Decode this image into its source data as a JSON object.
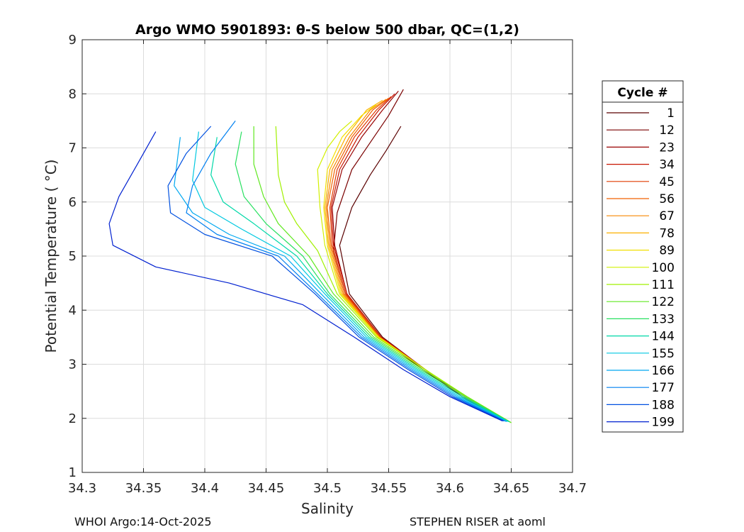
{
  "chart_data": {
    "type": "line",
    "title": "Argo WMO 5901893: θ-S below 500 dbar,  QC=(1,2)",
    "xlabel": "Salinity",
    "ylabel": "Potential Temperature ( °C)",
    "xlim": [
      34.3,
      34.7
    ],
    "ylim": [
      1,
      9
    ],
    "xticks": [
      34.3,
      34.35,
      34.4,
      34.45,
      34.5,
      34.55,
      34.6,
      34.65,
      34.7
    ],
    "xtick_labels": [
      "34.3",
      "34.35",
      "34.4",
      "34.45",
      "34.5",
      "34.55",
      "34.6",
      "34.65",
      "34.7"
    ],
    "yticks": [
      1,
      2,
      3,
      4,
      5,
      6,
      7,
      8,
      9
    ],
    "ytick_labels": [
      "1",
      "2",
      "3",
      "4",
      "5",
      "6",
      "7",
      "8",
      "9"
    ],
    "grid": true,
    "legend": {
      "title": "Cycle #",
      "position": "right-outside",
      "entries": [
        {
          "label": "1",
          "color": "#5a0000"
        },
        {
          "label": "12",
          "color": "#7a0000"
        },
        {
          "label": "23",
          "color": "#990000"
        },
        {
          "label": "34",
          "color": "#c81400"
        },
        {
          "label": "45",
          "color": "#e03a00"
        },
        {
          "label": "56",
          "color": "#f06000"
        },
        {
          "label": "67",
          "color": "#f88800"
        },
        {
          "label": "78",
          "color": "#fcb000"
        },
        {
          "label": "89",
          "color": "#f2e000"
        },
        {
          "label": "100",
          "color": "#d2f000"
        },
        {
          "label": "111",
          "color": "#a0f000"
        },
        {
          "label": "122",
          "color": "#60e820"
        },
        {
          "label": "133",
          "color": "#28e060"
        },
        {
          "label": "144",
          "color": "#00d8a8"
        },
        {
          "label": "155",
          "color": "#00c8e0"
        },
        {
          "label": "166",
          "color": "#00a8f0"
        },
        {
          "label": "177",
          "color": "#0080f0"
        },
        {
          "label": "188",
          "color": "#0050e0"
        },
        {
          "label": "199",
          "color": "#0020d0"
        }
      ]
    },
    "series": [
      {
        "name": "1",
        "color": "#5a0000",
        "x": [
          34.645,
          34.61,
          34.58,
          34.545,
          34.518,
          34.51,
          34.52,
          34.535,
          34.548,
          34.56
        ],
        "y": [
          1.95,
          2.4,
          2.9,
          3.5,
          4.3,
          5.2,
          5.9,
          6.5,
          6.95,
          7.4
        ]
      },
      {
        "name": "12",
        "color": "#7a0000",
        "x": [
          34.645,
          34.61,
          34.578,
          34.542,
          34.515,
          34.505,
          34.508,
          34.52,
          34.535,
          34.55,
          34.562
        ],
        "y": [
          1.95,
          2.4,
          2.9,
          3.5,
          4.3,
          5.1,
          5.8,
          6.6,
          7.1,
          7.6,
          8.08
        ]
      },
      {
        "name": "23",
        "color": "#990000",
        "x": [
          34.646,
          34.612,
          34.58,
          34.544,
          34.516,
          34.506,
          34.504,
          34.512,
          34.528,
          34.545,
          34.558
        ],
        "y": [
          1.95,
          2.4,
          2.9,
          3.5,
          4.3,
          5.2,
          5.9,
          6.6,
          7.2,
          7.7,
          8.05
        ]
      },
      {
        "name": "34",
        "color": "#c81400",
        "x": [
          34.646,
          34.612,
          34.58,
          34.544,
          34.516,
          34.505,
          34.503,
          34.51,
          34.525,
          34.542,
          34.555
        ],
        "y": [
          1.95,
          2.4,
          2.9,
          3.5,
          4.3,
          5.2,
          5.9,
          6.6,
          7.2,
          7.7,
          8.0
        ]
      },
      {
        "name": "45",
        "color": "#e03a00",
        "x": [
          34.646,
          34.612,
          34.58,
          34.543,
          34.515,
          34.504,
          34.502,
          34.508,
          34.522,
          34.54,
          34.552
        ],
        "y": [
          1.95,
          2.4,
          2.9,
          3.5,
          4.3,
          5.2,
          5.9,
          6.6,
          7.2,
          7.7,
          7.95
        ]
      },
      {
        "name": "56",
        "color": "#f06000",
        "x": [
          34.646,
          34.612,
          34.58,
          34.543,
          34.514,
          34.503,
          34.5,
          34.506,
          34.52,
          34.537,
          34.55
        ],
        "y": [
          1.95,
          2.4,
          2.9,
          3.5,
          4.3,
          5.2,
          5.9,
          6.6,
          7.2,
          7.7,
          7.92
        ]
      },
      {
        "name": "67",
        "color": "#f88800",
        "x": [
          34.647,
          34.612,
          34.58,
          34.542,
          34.513,
          34.502,
          34.499,
          34.504,
          34.518,
          34.535,
          34.548
        ],
        "y": [
          1.95,
          2.4,
          2.9,
          3.5,
          4.3,
          5.2,
          5.9,
          6.6,
          7.2,
          7.7,
          7.9
        ]
      },
      {
        "name": "78",
        "color": "#fcb000",
        "x": [
          34.648,
          34.613,
          34.58,
          34.542,
          34.512,
          34.501,
          34.498,
          34.502,
          34.515,
          34.532,
          34.545
        ],
        "y": [
          1.95,
          2.4,
          2.9,
          3.5,
          4.3,
          5.2,
          5.9,
          6.6,
          7.2,
          7.7,
          7.88
        ]
      },
      {
        "name": "89",
        "color": "#f2e000",
        "x": [
          34.648,
          34.613,
          34.58,
          34.542,
          34.511,
          34.5,
          34.497,
          34.5,
          34.512,
          34.528,
          34.54
        ],
        "y": [
          1.95,
          2.4,
          2.9,
          3.5,
          4.3,
          5.2,
          5.9,
          6.6,
          7.2,
          7.6,
          7.8
        ]
      },
      {
        "name": "100",
        "color": "#d2f000",
        "x": [
          34.65,
          34.614,
          34.58,
          34.541,
          34.51,
          34.498,
          34.494,
          34.492,
          34.5,
          34.51,
          34.52
        ],
        "y": [
          1.92,
          2.4,
          2.9,
          3.5,
          4.3,
          5.2,
          5.9,
          6.6,
          7.0,
          7.3,
          7.5
        ]
      },
      {
        "name": "111",
        "color": "#a0f000",
        "x": [
          34.65,
          34.614,
          34.58,
          34.54,
          34.508,
          34.492,
          34.475,
          34.465,
          34.46,
          34.458
        ],
        "y": [
          1.92,
          2.4,
          2.9,
          3.5,
          4.3,
          5.1,
          5.6,
          6.0,
          6.5,
          7.4
        ]
      },
      {
        "name": "122",
        "color": "#60e820",
        "x": [
          34.65,
          34.614,
          34.578,
          34.538,
          34.505,
          34.485,
          34.46,
          34.448,
          34.44,
          34.44
        ],
        "y": [
          1.92,
          2.4,
          2.9,
          3.5,
          4.3,
          5.0,
          5.6,
          6.1,
          6.7,
          7.4
        ]
      },
      {
        "name": "133",
        "color": "#28e060",
        "x": [
          34.649,
          34.612,
          34.576,
          34.536,
          34.502,
          34.48,
          34.45,
          34.432,
          34.425,
          34.43
        ],
        "y": [
          1.93,
          2.4,
          2.9,
          3.5,
          4.3,
          5.0,
          5.6,
          6.1,
          6.7,
          7.3
        ]
      },
      {
        "name": "144",
        "color": "#00d8a8",
        "x": [
          34.648,
          34.61,
          34.574,
          34.534,
          34.5,
          34.475,
          34.44,
          34.415,
          34.405,
          34.41
        ],
        "y": [
          1.94,
          2.4,
          2.9,
          3.5,
          4.3,
          5.0,
          5.6,
          6.0,
          6.5,
          7.2
        ]
      },
      {
        "name": "155",
        "color": "#00c8e0",
        "x": [
          34.647,
          34.608,
          34.572,
          34.532,
          34.498,
          34.47,
          34.43,
          34.4,
          34.39,
          34.395
        ],
        "y": [
          1.94,
          2.4,
          2.9,
          3.5,
          4.3,
          5.0,
          5.5,
          5.9,
          6.4,
          7.3
        ]
      },
      {
        "name": "166",
        "color": "#00a8f0",
        "x": [
          34.646,
          34.606,
          34.57,
          34.53,
          34.495,
          34.465,
          34.42,
          34.39,
          34.375,
          34.38
        ],
        "y": [
          1.94,
          2.4,
          2.9,
          3.5,
          4.3,
          5.0,
          5.4,
          5.8,
          6.3,
          7.2
        ]
      },
      {
        "name": "177",
        "color": "#0080f0",
        "x": [
          34.645,
          34.604,
          34.568,
          34.528,
          34.492,
          34.46,
          34.41,
          34.385,
          34.39,
          34.405,
          34.425
        ],
        "y": [
          1.95,
          2.4,
          2.9,
          3.5,
          4.3,
          5.0,
          5.4,
          5.8,
          6.3,
          6.9,
          7.5
        ]
      },
      {
        "name": "188",
        "color": "#0050e0",
        "x": [
          34.644,
          34.602,
          34.566,
          34.526,
          34.49,
          34.455,
          34.4,
          34.372,
          34.37,
          34.385,
          34.405
        ],
        "y": [
          1.95,
          2.4,
          2.9,
          3.5,
          4.3,
          5.0,
          5.4,
          5.8,
          6.3,
          6.9,
          7.4
        ]
      },
      {
        "name": "199",
        "color": "#0020d0",
        "x": [
          34.643,
          34.6,
          34.562,
          34.522,
          34.48,
          34.42,
          34.36,
          34.325,
          34.322,
          34.33,
          34.345,
          34.36
        ],
        "y": [
          1.95,
          2.4,
          2.9,
          3.5,
          4.1,
          4.5,
          4.8,
          5.2,
          5.6,
          6.1,
          6.7,
          7.3
        ]
      }
    ]
  },
  "footer": {
    "left": "WHOI Argo:14-Oct-2025",
    "right": "STEPHEN RISER at aoml"
  }
}
